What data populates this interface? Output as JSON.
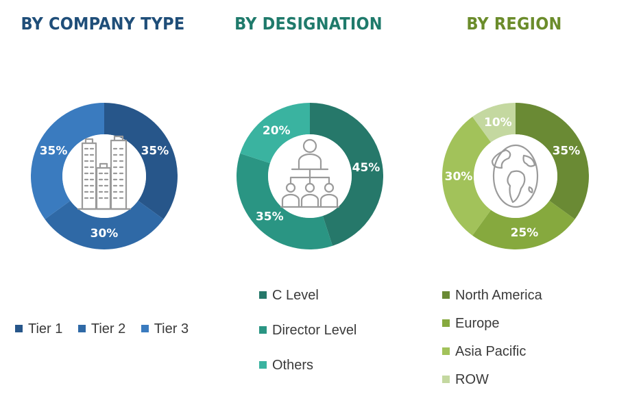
{
  "chart_data": [
    {
      "type": "pie",
      "title": "BY COMPANY TYPE",
      "title_color": "#1f4e79",
      "categories": [
        "Tier 1",
        "Tier 2",
        "Tier 3"
      ],
      "values": [
        35,
        30,
        35
      ],
      "value_labels": [
        "35%",
        "30%",
        "35%"
      ],
      "colors": [
        "#27568a",
        "#2f69a6",
        "#3a7bbf"
      ],
      "icon": "buildings-icon",
      "legend_placement": "bottom"
    },
    {
      "type": "pie",
      "title": "BY DESIGNATION",
      "title_color": "#1f7a6b",
      "categories": [
        "C Level",
        "Director Level",
        "Others"
      ],
      "values": [
        45,
        35,
        20
      ],
      "value_labels": [
        "45%",
        "35%",
        "20%"
      ],
      "colors": [
        "#26786a",
        "#2a9583",
        "#3ab3a0"
      ],
      "icon": "hierarchy-people-icon",
      "legend_placement": "bottom"
    },
    {
      "type": "pie",
      "title": "BY REGION",
      "title_color": "#6b8c2b",
      "categories": [
        "North America",
        "Europe",
        "Asia Pacific",
        "ROW"
      ],
      "values": [
        35,
        25,
        30,
        10
      ],
      "value_labels": [
        "35%",
        "25%",
        "30%",
        "10%"
      ],
      "colors": [
        "#6a8a34",
        "#86a93e",
        "#a2c25a",
        "#c4d8a0"
      ],
      "icon": "globe-icon",
      "legend_placement": "bottom"
    }
  ]
}
